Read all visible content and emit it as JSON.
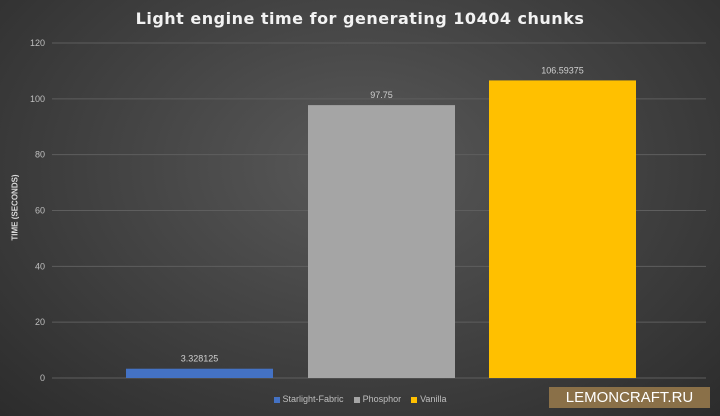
{
  "chart_data": {
    "type": "bar",
    "title": "Light engine time for generating 10404 chunks",
    "xlabel": "",
    "ylabel": "TIME (SECONDS)",
    "ylim": [
      0,
      120
    ],
    "yticks": [
      0,
      20,
      40,
      60,
      80,
      100,
      120
    ],
    "grid": true,
    "legend_position": "bottom",
    "series": [
      {
        "name": "Starlight-Fabric",
        "values": [
          3.328125
        ],
        "label": "3.328125",
        "color": "#4472c4"
      },
      {
        "name": "Phosphor",
        "values": [
          97.75
        ],
        "label": "97.75",
        "color": "#a5a5a5"
      },
      {
        "name": "Vanilla",
        "values": [
          106.59375
        ],
        "label": "106.59375",
        "color": "#ffc000"
      }
    ]
  },
  "watermark": "LEMONCRAFT.RU"
}
